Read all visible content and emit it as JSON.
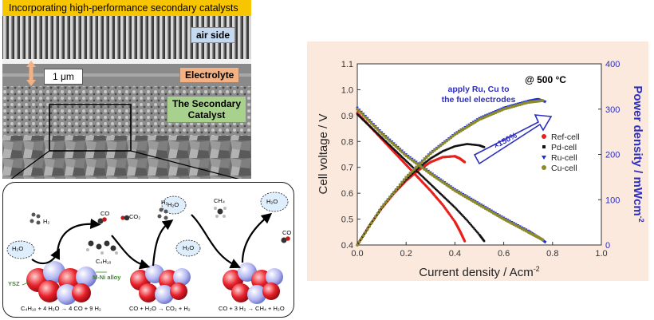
{
  "sem": {
    "title": "Incorporating high-performance secondary catalysts",
    "air_side": "air side",
    "electrolyte": "Electrolyte",
    "catalyst_line1": "The Secondary",
    "catalyst_line2": "Catalyst",
    "scale": "1 μm"
  },
  "mechanism": {
    "h2o_1": "H₂O",
    "h2o_2": "H₂O",
    "h2o_3": "H₂O",
    "h2o_4": "H₂O",
    "h2_1": "H₂",
    "h2_2": "H₂",
    "co_1": "CO",
    "co_2": "CO",
    "co2": "CO₂",
    "ch4": "CH₄",
    "c4h10": "C₄H₁₀",
    "ysz": "YSZ",
    "alloy": "M-Ni alloy",
    "eq1": "C₄H₁₀ + 4 H₂O → 4 CO + 9 H₂",
    "eq2": "CO + H₂O → CO₂ + H₂",
    "eq3": "CO + 3 H₂ → CH₄ + H₂O"
  },
  "chart_data": {
    "type": "line",
    "xlabel": "Current density / Acm",
    "xlabel_sup": "-2",
    "ylabel": "Cell voltage / V",
    "y2label": "Power density / mWcm",
    "y2label_sup": "-2",
    "xlim": [
      0.0,
      1.0
    ],
    "ylim": [
      0.4,
      1.1
    ],
    "y2lim": [
      0,
      400
    ],
    "xticks": [
      "0.0",
      "0.2",
      "0.4",
      "0.6",
      "0.8",
      "1.0"
    ],
    "yticks": [
      "0.4",
      "0.5",
      "0.6",
      "0.7",
      "0.8",
      "0.9",
      "1.0",
      "1.1"
    ],
    "y2ticks": [
      "0",
      "100",
      "200",
      "300",
      "400"
    ],
    "temperature_label": "@ 500 °C",
    "annotation_line1": "apply Ru, Cu to",
    "annotation_line2": "the fuel electrodes",
    "arrow_label": "×150%",
    "series": [
      {
        "name": "Ref-cell",
        "color": "#e8201c",
        "voltage_x": [
          0.0,
          0.05,
          0.1,
          0.15,
          0.2,
          0.25,
          0.3,
          0.35,
          0.4,
          0.42,
          0.44
        ],
        "voltage_y": [
          0.91,
          0.86,
          0.81,
          0.76,
          0.71,
          0.66,
          0.61,
          0.555,
          0.49,
          0.455,
          0.415
        ],
        "power_x": [
          0.0,
          0.05,
          0.1,
          0.15,
          0.2,
          0.25,
          0.3,
          0.35,
          0.4,
          0.42,
          0.44
        ],
        "power_y": [
          0,
          43,
          81,
          114,
          142,
          165,
          183,
          194,
          196,
          191,
          183
        ]
      },
      {
        "name": "Pd-cell",
        "color": "#111111",
        "voltage_x": [
          0.0,
          0.05,
          0.1,
          0.15,
          0.2,
          0.25,
          0.3,
          0.35,
          0.4,
          0.45,
          0.5,
          0.52
        ],
        "voltage_y": [
          0.905,
          0.86,
          0.815,
          0.77,
          0.725,
          0.68,
          0.635,
          0.59,
          0.545,
          0.495,
          0.44,
          0.415
        ],
        "power_x": [
          0.0,
          0.05,
          0.1,
          0.15,
          0.2,
          0.25,
          0.3,
          0.35,
          0.4,
          0.45,
          0.5,
          0.52
        ],
        "power_y": [
          0,
          43,
          82,
          116,
          145,
          170,
          191,
          207,
          218,
          223,
          220,
          216
        ]
      },
      {
        "name": "Ru-cell",
        "color": "#1f2fd6",
        "voltage_x": [
          0.0,
          0.1,
          0.2,
          0.3,
          0.4,
          0.5,
          0.6,
          0.7,
          0.75,
          0.77
        ],
        "voltage_y": [
          0.93,
          0.835,
          0.75,
          0.68,
          0.615,
          0.56,
          0.505,
          0.455,
          0.425,
          0.41
        ],
        "power_x": [
          0.0,
          0.1,
          0.2,
          0.3,
          0.4,
          0.5,
          0.6,
          0.7,
          0.74,
          0.77
        ],
        "power_y": [
          0,
          84,
          150,
          204,
          246,
          280,
          303,
          318,
          322,
          316
        ]
      },
      {
        "name": "Cu-cell",
        "color": "#8c8a2a",
        "voltage_x": [
          0.0,
          0.1,
          0.2,
          0.3,
          0.4,
          0.5,
          0.6,
          0.7,
          0.76
        ],
        "voltage_y": [
          0.925,
          0.83,
          0.745,
          0.675,
          0.61,
          0.555,
          0.5,
          0.45,
          0.42
        ],
        "power_x": [
          0.0,
          0.1,
          0.2,
          0.3,
          0.4,
          0.5,
          0.6,
          0.7,
          0.76
        ],
        "power_y": [
          0,
          83,
          149,
          202,
          244,
          277,
          300,
          315,
          319
        ]
      }
    ],
    "legend_position": "right"
  }
}
